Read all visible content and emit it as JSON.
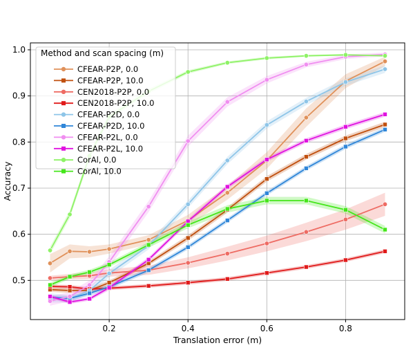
{
  "chart_data": {
    "type": "line",
    "xlabel": "Translation error (m)",
    "ylabel": "Accuracy",
    "xlim": [
      0.0,
      0.95
    ],
    "ylim": [
      0.415,
      1.015
    ],
    "xticks": [
      "0.2",
      "0.4",
      "0.6",
      "0.8"
    ],
    "yticks": [
      "0.5",
      "0.6",
      "0.7",
      "0.8",
      "0.9",
      "1.0"
    ],
    "grid": true,
    "legend": {
      "title": "Method and scan spacing (m)",
      "placement": "top-left",
      "entries": [
        "CFEAR-P2P, 0.0",
        "CFEAR-P2P, 10.0",
        "CEN2018-P2P, 0.0",
        "CEN2018-P2P, 10.0",
        "CFEAR-P2D, 0.0",
        "CFEAR-P2D, 10.0",
        "CFEAR-P2L, 0.0",
        "CFEAR-P2L, 10.0",
        "CorAl, 0.0",
        "CorAl, 10.0"
      ]
    },
    "x": [
      0.05,
      0.1,
      0.15,
      0.2,
      0.3,
      0.4,
      0.5,
      0.6,
      0.7,
      0.8,
      0.9
    ],
    "series": [
      {
        "name": "CFEAR-P2P, 0.0",
        "color": "#e0915a",
        "marker": "circle",
        "values": [
          0.537,
          0.563,
          0.562,
          0.568,
          0.588,
          0.63,
          0.69,
          0.76,
          0.853,
          0.932,
          0.975
        ],
        "band": [
          0.02,
          0.015,
          0.012,
          0.01,
          0.01,
          0.012,
          0.015,
          0.018,
          0.02,
          0.015,
          0.01
        ]
      },
      {
        "name": "CFEAR-P2P, 10.0",
        "color": "#c04f0e",
        "marker": "square",
        "values": [
          0.48,
          0.478,
          0.478,
          0.495,
          0.537,
          0.592,
          0.653,
          0.72,
          0.768,
          0.808,
          0.838
        ],
        "band": [
          0.005,
          0.005,
          0.005,
          0.005,
          0.005,
          0.006,
          0.006,
          0.006,
          0.006,
          0.006,
          0.006
        ]
      },
      {
        "name": "CEN2018-P2P, 0.0",
        "color": "#ee6b63",
        "marker": "circle",
        "values": [
          0.505,
          0.508,
          0.51,
          0.516,
          0.522,
          0.538,
          0.558,
          0.58,
          0.605,
          0.632,
          0.665
        ],
        "band": [
          0.005,
          0.006,
          0.007,
          0.008,
          0.01,
          0.012,
          0.015,
          0.017,
          0.02,
          0.022,
          0.025
        ]
      },
      {
        "name": "CEN2018-P2P, 10.0",
        "color": "#e01a1a",
        "marker": "square",
        "values": [
          0.487,
          0.486,
          0.481,
          0.483,
          0.488,
          0.495,
          0.503,
          0.516,
          0.529,
          0.544,
          0.563
        ],
        "band": [
          0.004,
          0.004,
          0.004,
          0.004,
          0.004,
          0.004,
          0.004,
          0.004,
          0.004,
          0.004,
          0.004
        ]
      },
      {
        "name": "CFEAR-P2D, 0.0",
        "color": "#8ec5e8",
        "marker": "circle",
        "values": [
          0.462,
          0.46,
          0.478,
          0.515,
          0.575,
          0.665,
          0.76,
          0.837,
          0.888,
          0.93,
          0.958
        ],
        "band": [
          0.01,
          0.008,
          0.008,
          0.008,
          0.008,
          0.008,
          0.008,
          0.008,
          0.008,
          0.008,
          0.008
        ]
      },
      {
        "name": "CFEAR-P2D, 10.0",
        "color": "#2f86d8",
        "marker": "square",
        "values": [
          0.463,
          0.461,
          0.472,
          0.486,
          0.522,
          0.572,
          0.63,
          0.689,
          0.743,
          0.79,
          0.827
        ],
        "band": [
          0.005,
          0.005,
          0.005,
          0.005,
          0.005,
          0.005,
          0.005,
          0.005,
          0.005,
          0.005,
          0.005
        ]
      },
      {
        "name": "CFEAR-P2L, 0.0",
        "color": "#f08ef0",
        "marker": "circle",
        "values": [
          0.455,
          0.465,
          0.49,
          0.54,
          0.66,
          0.802,
          0.887,
          0.935,
          0.968,
          0.985,
          0.99
        ],
        "band": [
          0.01,
          0.01,
          0.01,
          0.012,
          0.012,
          0.012,
          0.01,
          0.008,
          0.006,
          0.005,
          0.004
        ]
      },
      {
        "name": "CFEAR-P2L, 10.0",
        "color": "#e012e0",
        "marker": "square",
        "values": [
          0.465,
          0.453,
          0.46,
          0.484,
          0.545,
          0.628,
          0.703,
          0.762,
          0.803,
          0.833,
          0.86
        ],
        "band": [
          0.004,
          0.004,
          0.004,
          0.005,
          0.005,
          0.005,
          0.005,
          0.005,
          0.005,
          0.005,
          0.005
        ]
      },
      {
        "name": "CorAl, 0.0",
        "color": "#8ef266",
        "marker": "circle",
        "values": [
          0.565,
          0.643,
          0.77,
          0.855,
          0.91,
          0.952,
          0.972,
          0.982,
          0.987,
          0.989,
          0.987
        ],
        "band": [
          0.008,
          0.008,
          0.008,
          0.006,
          0.005,
          0.004,
          0.003,
          0.003,
          0.002,
          0.002,
          0.002
        ]
      },
      {
        "name": "CorAl, 10.0",
        "color": "#44e61a",
        "marker": "square",
        "values": [
          0.49,
          0.508,
          0.518,
          0.534,
          0.577,
          0.62,
          0.655,
          0.673,
          0.673,
          0.653,
          0.61
        ],
        "band": [
          0.005,
          0.005,
          0.005,
          0.005,
          0.006,
          0.007,
          0.008,
          0.008,
          0.008,
          0.008,
          0.008
        ]
      }
    ]
  }
}
